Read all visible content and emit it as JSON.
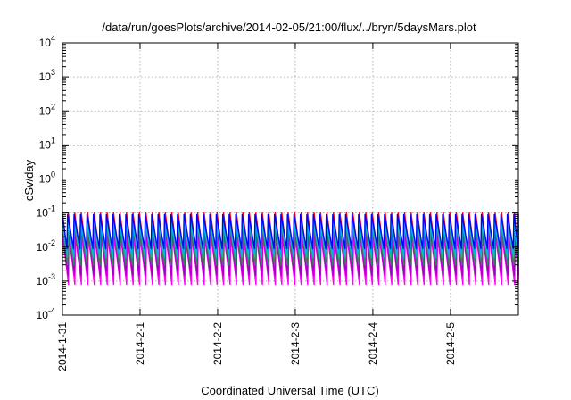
{
  "chart_data": {
    "type": "line",
    "title": "/data/run/goesPlots/archive/2014-02-05/21:00/flux/../bryn/5daysMars.plot",
    "xlabel": "Coordinated Universal Time (UTC)",
    "ylabel": "cSv/day",
    "y_scale": "log",
    "ylim": [
      0.0001,
      10000
    ],
    "xlim": [
      "2014-01-31T00:00",
      "2014-02-05T21:00"
    ],
    "y_ticks": [
      {
        "value": 0.0001,
        "base": "10",
        "exp": "-4"
      },
      {
        "value": 0.001,
        "base": "10",
        "exp": "-3"
      },
      {
        "value": 0.01,
        "base": "10",
        "exp": "-2"
      },
      {
        "value": 0.1,
        "base": "10",
        "exp": "-1"
      },
      {
        "value": 1,
        "base": "10",
        "exp": "0"
      },
      {
        "value": 10,
        "base": "10",
        "exp": "1"
      },
      {
        "value": 100,
        "base": "10",
        "exp": "2"
      },
      {
        "value": 1000,
        "base": "10",
        "exp": "3"
      },
      {
        "value": 10000,
        "base": "10",
        "exp": "4"
      }
    ],
    "x_ticks": [
      {
        "value": "2014-01-31T00:00",
        "label": "2014-1-31"
      },
      {
        "value": "2014-02-01T00:00",
        "label": "2014-2-1"
      },
      {
        "value": "2014-02-02T00:00",
        "label": "2014-2-2"
      },
      {
        "value": "2014-02-03T00:00",
        "label": "2014-2-3"
      },
      {
        "value": "2014-02-04T00:00",
        "label": "2014-2-4"
      },
      {
        "value": "2014-02-05T00:00",
        "label": "2014-2-5"
      }
    ],
    "grid": true,
    "sawtooth_period_hours": 2,
    "series": [
      {
        "color": "#ff00ff",
        "peak": 0.03,
        "trough": 0.0008
      },
      {
        "color": "#ff00ff",
        "peak": 0.02,
        "trough": 0.0012
      },
      {
        "color": "#a000c0",
        "peak": 0.035,
        "trough": 0.0015
      },
      {
        "color": "#ff0000",
        "peak": 0.1,
        "trough": 0.004
      },
      {
        "color": "#2e8b57",
        "peak": 0.04,
        "trough": 0.003
      },
      {
        "color": "#00c0c0",
        "peak": 0.05,
        "trough": 0.005
      },
      {
        "color": "#00b0ff",
        "peak": 0.06,
        "trough": 0.007
      },
      {
        "color": "#0000ff",
        "peak": 0.09,
        "trough": 0.009
      }
    ]
  }
}
